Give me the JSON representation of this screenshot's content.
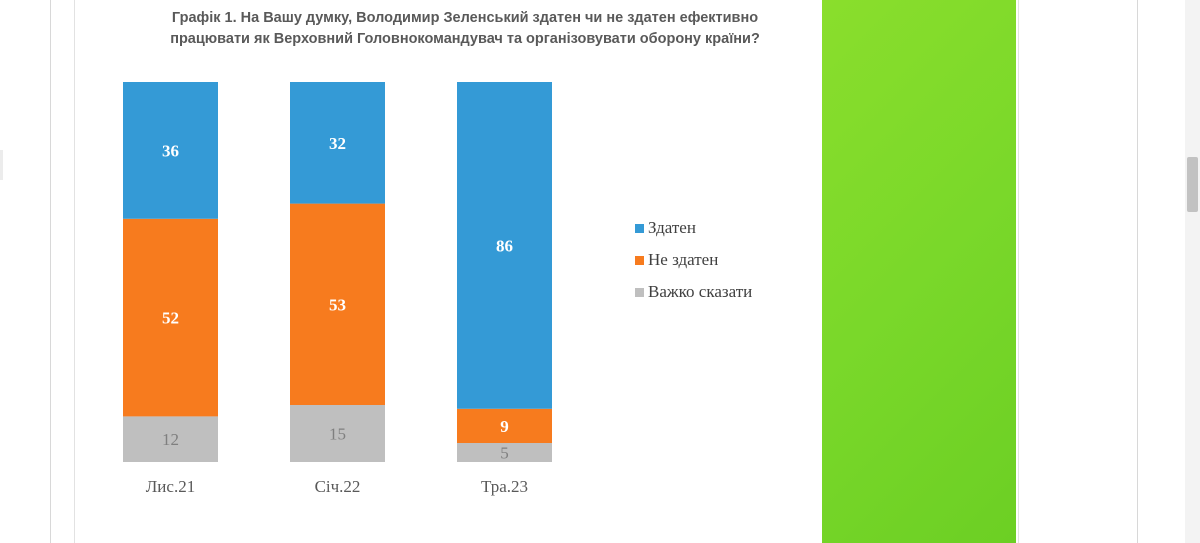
{
  "chart_data": {
    "type": "bar",
    "stacked": true,
    "title_lines": [
      "Графік 1. На Вашу думку, Володимир Зеленський здатен чи не здатен ефективно",
      "працювати як Верховний Головнокомандувач та організовувати оборону країни?"
    ],
    "categories": [
      "Лис.21",
      "Січ.22",
      "Тра.23"
    ],
    "series": [
      {
        "name": "Здатен",
        "values": [
          36,
          32,
          86
        ],
        "color": "#349ad6"
      },
      {
        "name": "Не здатен",
        "values": [
          52,
          53,
          9
        ],
        "color": "#f77b1e"
      },
      {
        "name": "Важко сказати",
        "values": [
          12,
          15,
          5
        ],
        "color": "#bfbfbf"
      }
    ],
    "ylim": [
      0,
      100
    ],
    "legend_position": "right",
    "grid": false
  },
  "page": {
    "accent_green": "#7ad82a"
  }
}
